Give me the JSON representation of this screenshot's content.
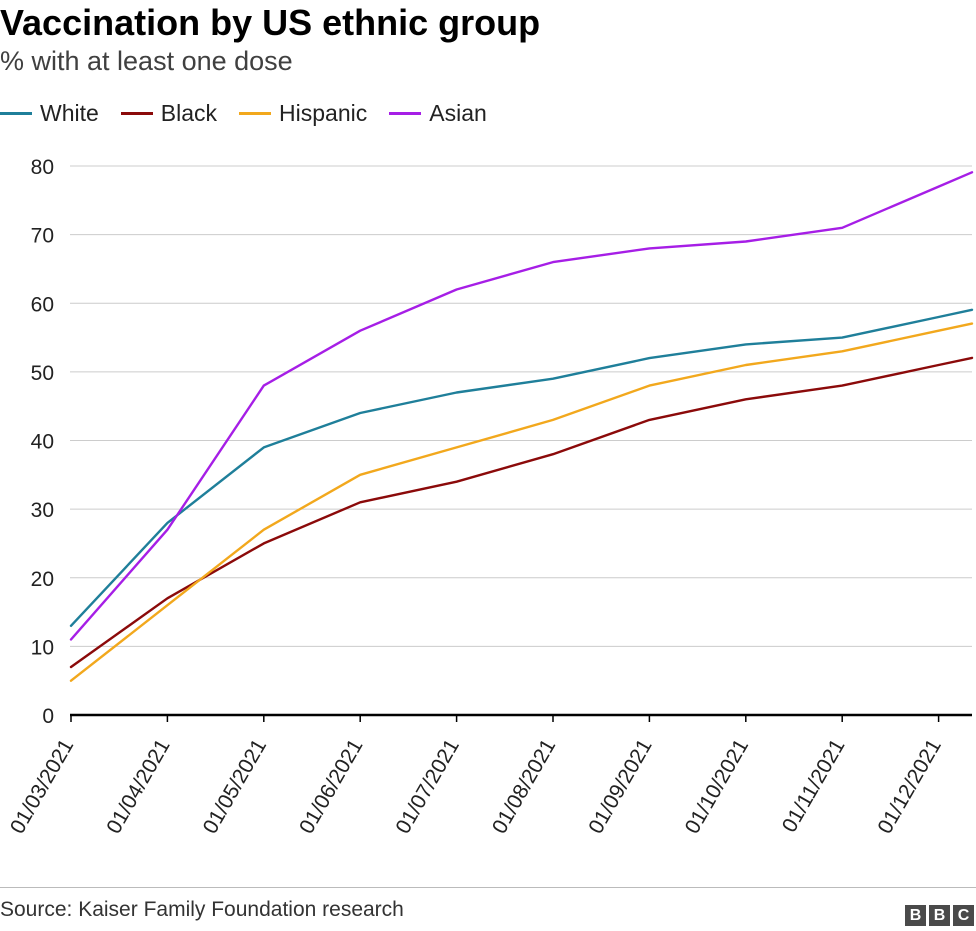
{
  "header": {
    "title": "Vaccination by US ethnic group",
    "subtitle": "% with at least one dose"
  },
  "footer": {
    "source": "Source: Kaiser Family Foundation research",
    "logo_letters": [
      "B",
      "B",
      "C"
    ]
  },
  "chart_data": {
    "type": "line",
    "title": "Vaccination by US ethnic group",
    "subtitle": "% with at least one dose",
    "xlabel": "",
    "ylabel": "",
    "x": [
      "01/03/2021",
      "01/04/2021",
      "01/05/2021",
      "01/06/2021",
      "01/07/2021",
      "01/08/2021",
      "01/09/2021",
      "01/10/2021",
      "01/11/2021",
      "01/12/2021"
    ],
    "ylim": [
      0,
      80
    ],
    "yticks": [
      0,
      10,
      20,
      30,
      40,
      50,
      60,
      70,
      80
    ],
    "grid": true,
    "legend_position": "top-left",
    "series": [
      {
        "name": "White",
        "color": "#1f7f9a",
        "values": [
          13,
          28,
          39,
          44,
          47,
          49,
          52,
          54,
          55,
          58
        ]
      },
      {
        "name": "Black",
        "color": "#8b0a0a",
        "values": [
          7,
          17,
          25,
          31,
          34,
          38,
          43,
          46,
          48,
          51
        ]
      },
      {
        "name": "Hispanic",
        "color": "#f2a81d",
        "values": [
          5,
          16,
          27,
          35,
          39,
          43,
          48,
          51,
          53,
          56
        ]
      },
      {
        "name": "Asian",
        "color": "#a61ee6",
        "values": [
          11,
          27,
          48,
          56,
          62,
          66,
          68,
          69,
          71,
          77
        ]
      }
    ],
    "x_extends_past_last_point": true
  }
}
